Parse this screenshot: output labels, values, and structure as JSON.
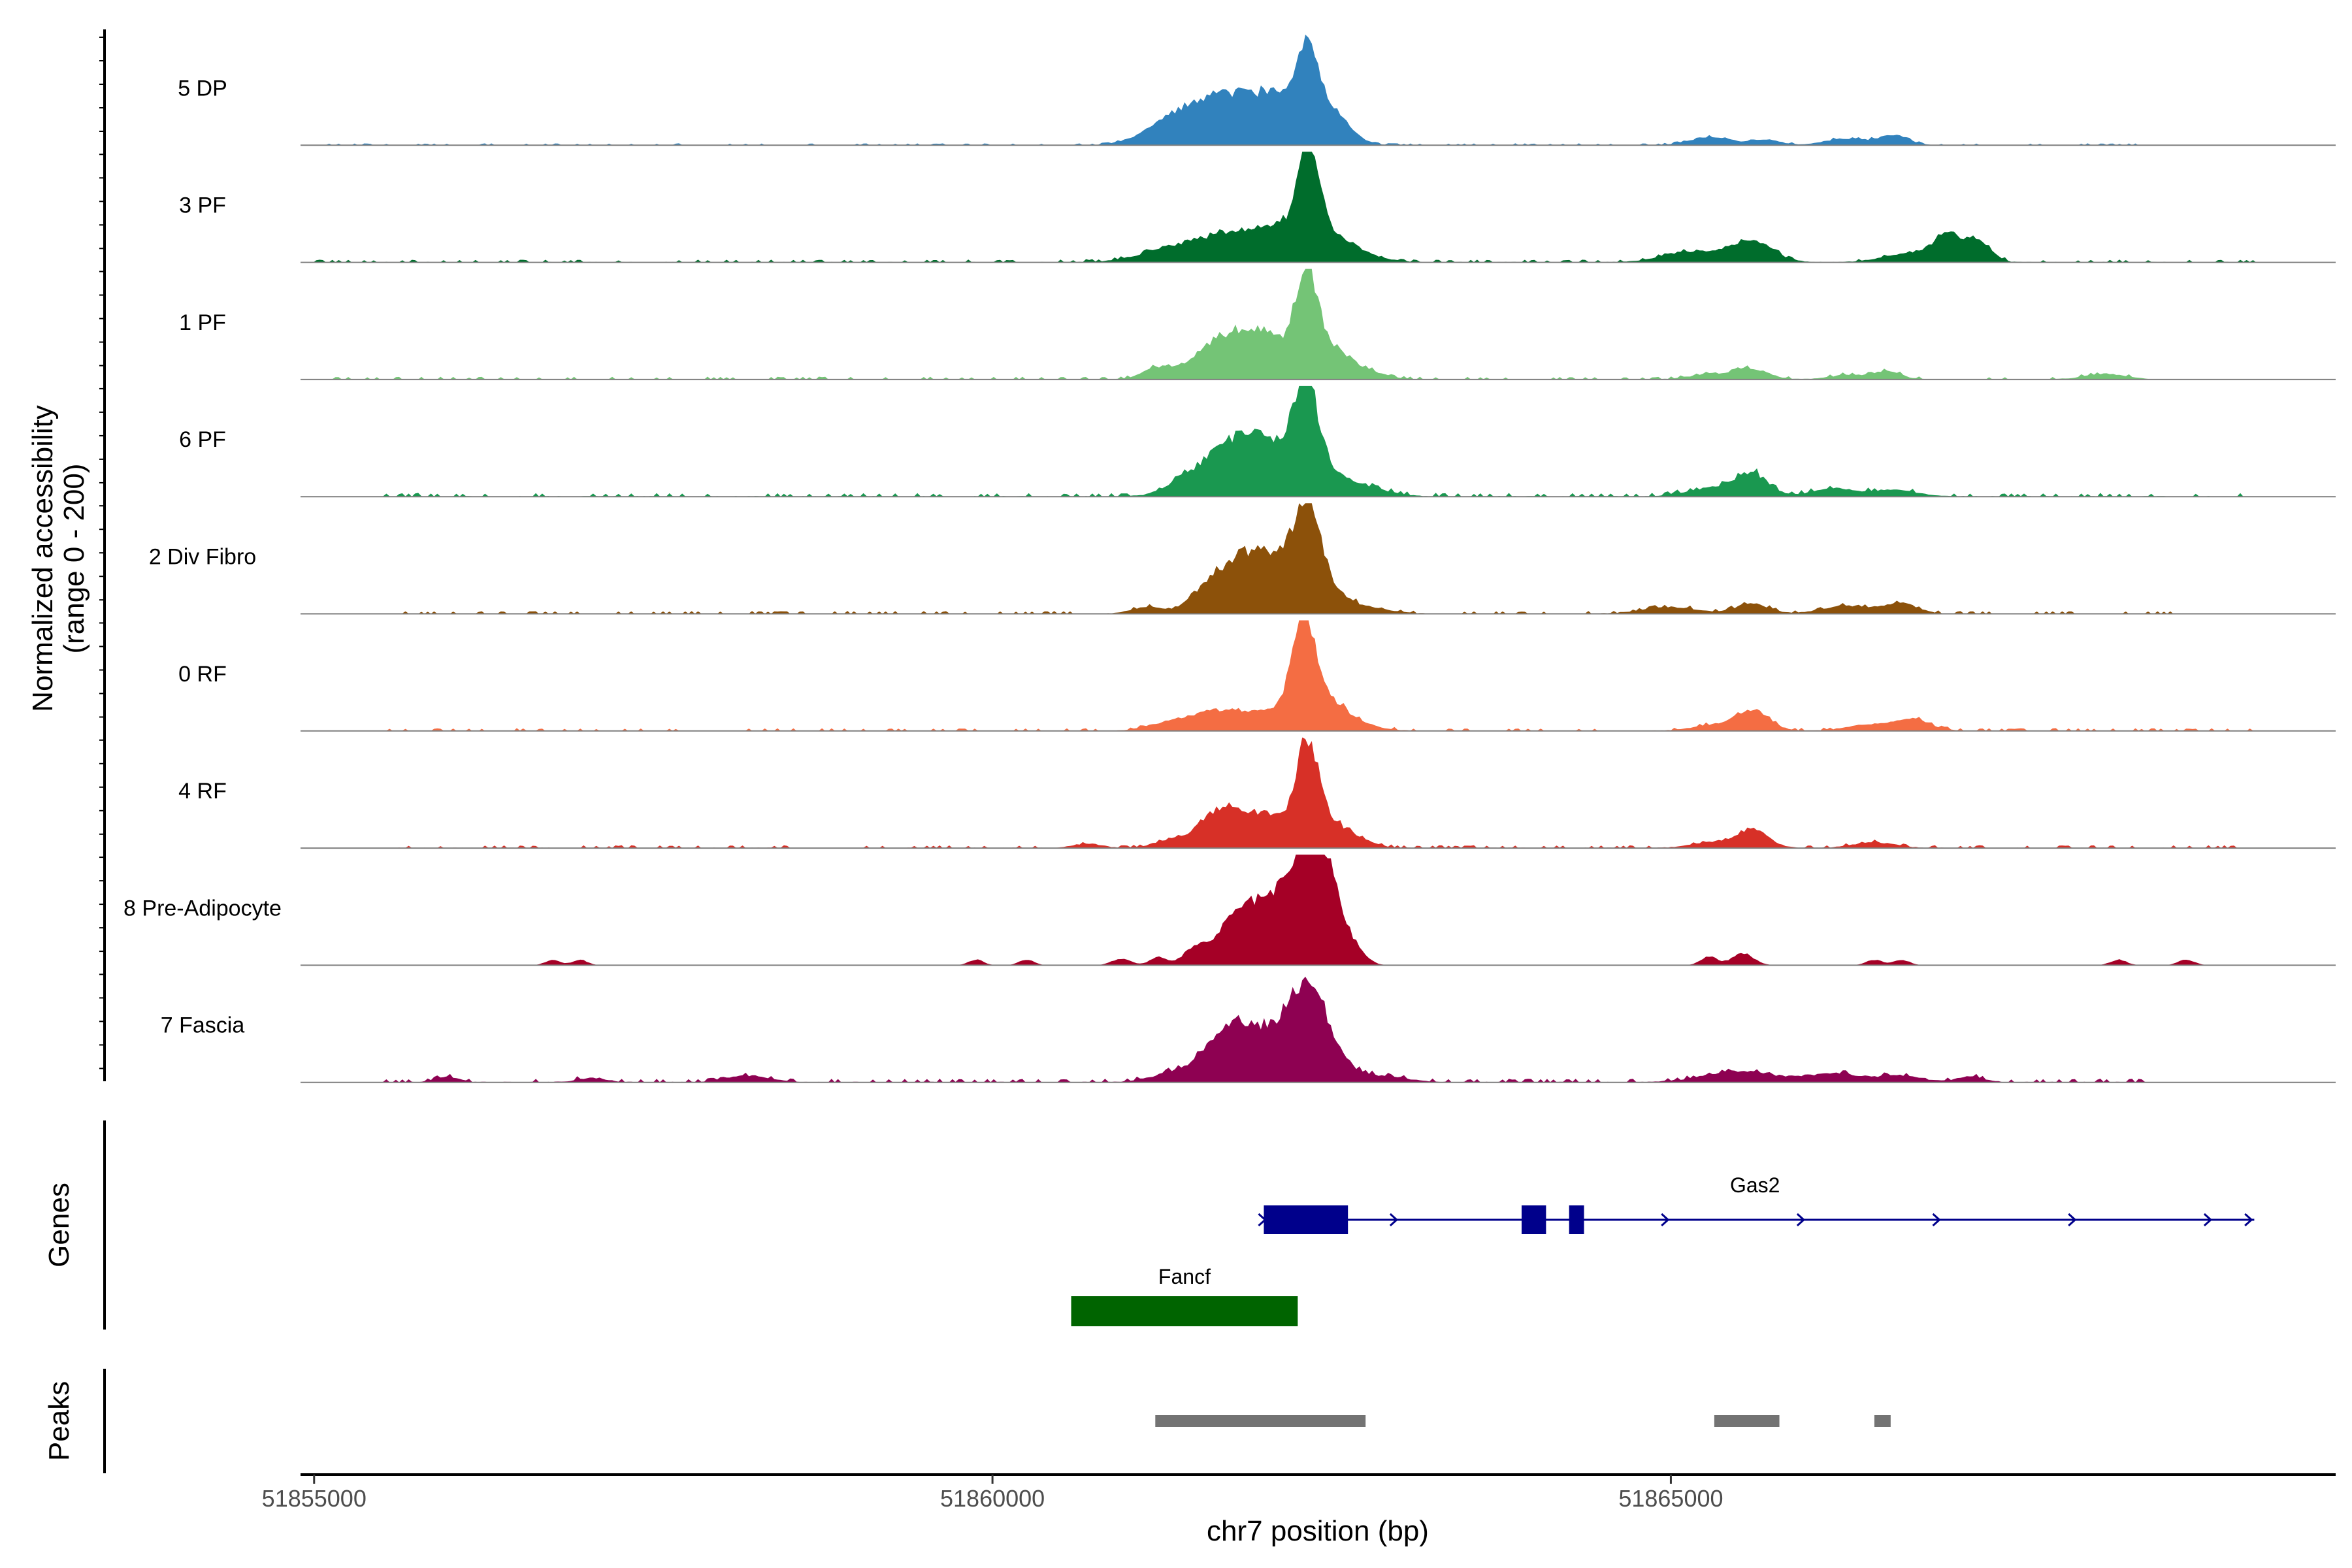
{
  "chart_data": {
    "type": "area",
    "title": "",
    "xlabel": "chr7 position (bp)",
    "ylabel_line1": "Normalized accessibility",
    "ylabel_line2": "(range 0 - 200)",
    "ylim": [
      0,
      200
    ],
    "xlim": [
      51854900,
      51869900
    ],
    "x_ticks": [
      {
        "value": 51855000,
        "label": "51855000"
      },
      {
        "value": 51860000,
        "label": "51860000"
      },
      {
        "value": 51865000,
        "label": "51865000"
      }
    ],
    "tracks": [
      {
        "name": "5 DP",
        "color": "#3182BD",
        "noise": 2,
        "noise_from": 51855000,
        "noise_to": 51868500,
        "peaks": [
          [
            51861150,
            15,
            150
          ],
          [
            51861700,
            92,
            260
          ],
          [
            51862100,
            60,
            160
          ],
          [
            51862320,
            128,
            75
          ],
          [
            51862450,
            70,
            150
          ],
          [
            51861350,
            20,
            120
          ],
          [
            51865300,
            15,
            150
          ],
          [
            51865700,
            10,
            100
          ],
          [
            51866300,
            12,
            160
          ],
          [
            51866650,
            18,
            100
          ]
        ]
      },
      {
        "name": "3 PF",
        "color": "#006D2C",
        "noise": 3,
        "noise_from": 51855000,
        "noise_to": 51869300,
        "peaks": [
          [
            51861300,
            22,
            220
          ],
          [
            51861800,
            55,
            250
          ],
          [
            51862150,
            45,
            130
          ],
          [
            51862330,
            172,
            75
          ],
          [
            51862480,
            50,
            150
          ],
          [
            51862750,
            10,
            150
          ],
          [
            51865150,
            20,
            200
          ],
          [
            51865600,
            38,
            150
          ],
          [
            51866800,
            18,
            200
          ],
          [
            51867050,
            42,
            100
          ],
          [
            51867270,
            38,
            90
          ]
        ]
      },
      {
        "name": "1 PF",
        "color": "#74C476",
        "noise": 3,
        "noise_from": 51855000,
        "noise_to": 51868500,
        "peaks": [
          [
            51861200,
            18,
            100
          ],
          [
            51861750,
            82,
            230
          ],
          [
            51862050,
            45,
            130
          ],
          [
            51862310,
            160,
            85
          ],
          [
            51862470,
            55,
            150
          ],
          [
            51862750,
            12,
            150
          ],
          [
            51865300,
            10,
            150
          ],
          [
            51865600,
            18,
            120
          ],
          [
            51866300,
            8,
            130
          ],
          [
            51866600,
            14,
            100
          ],
          [
            51868200,
            10,
            150
          ]
        ]
      },
      {
        "name": "6 PF",
        "color": "#1A9850",
        "noise": 4,
        "noise_from": 51855500,
        "noise_to": 51869200,
        "peaks": [
          [
            51861400,
            15,
            150
          ],
          [
            51861700,
            65,
            200
          ],
          [
            51862000,
            90,
            200
          ],
          [
            51862310,
            165,
            90
          ],
          [
            51862470,
            40,
            180
          ],
          [
            51862800,
            10,
            160
          ],
          [
            51865300,
            15,
            180
          ],
          [
            51865600,
            40,
            120
          ],
          [
            51866200,
            14,
            160
          ],
          [
            51866650,
            12,
            160
          ]
        ]
      },
      {
        "name": "2 Div Fibro",
        "color": "#8C510A",
        "noise": 3,
        "noise_from": 51855500,
        "noise_to": 51868700,
        "peaks": [
          [
            51861150,
            12,
            120
          ],
          [
            51861550,
            20,
            110
          ],
          [
            51861850,
            100,
            200
          ],
          [
            51862200,
            70,
            180
          ],
          [
            51862330,
            152,
            90
          ],
          [
            51862520,
            25,
            140
          ],
          [
            51862800,
            8,
            160
          ],
          [
            51865000,
            12,
            200
          ],
          [
            51865600,
            18,
            120
          ],
          [
            51866300,
            14,
            180
          ],
          [
            51866700,
            18,
            120
          ]
        ]
      },
      {
        "name": "0 RF",
        "color": "#F46D43",
        "noise": 3,
        "noise_from": 51855500,
        "noise_to": 51869300,
        "peaks": [
          [
            51861300,
            14,
            150
          ],
          [
            51861700,
            38,
            200
          ],
          [
            51862100,
            30,
            150
          ],
          [
            51862290,
            168,
            85
          ],
          [
            51862450,
            55,
            140
          ],
          [
            51862700,
            10,
            150
          ],
          [
            51865300,
            10,
            150
          ],
          [
            51865600,
            38,
            120
          ],
          [
            51866500,
            12,
            180
          ],
          [
            51866800,
            18,
            120
          ]
        ]
      },
      {
        "name": "4 RF",
        "color": "#D73027",
        "noise": 3,
        "noise_from": 51855500,
        "noise_to": 51869200,
        "peaks": [
          [
            51860700,
            8,
            100
          ],
          [
            51861300,
            12,
            120
          ],
          [
            51861650,
            30,
            150
          ],
          [
            51861800,
            50,
            200
          ],
          [
            51862100,
            38,
            150
          ],
          [
            51862320,
            160,
            80
          ],
          [
            51862470,
            45,
            140
          ],
          [
            51862700,
            10,
            120
          ],
          [
            51865300,
            10,
            150
          ],
          [
            51865600,
            32,
            120
          ],
          [
            51866500,
            10,
            150
          ]
        ]
      },
      {
        "name": "8 Pre-Adipocyte",
        "color": "#A50026",
        "noise": 0,
        "noise_from": 51855000,
        "noise_to": 51869500,
        "peaks": [
          [
            51856760,
            10,
            55
          ],
          [
            51856960,
            10,
            55
          ],
          [
            51859880,
            10,
            55
          ],
          [
            51860250,
            10,
            55
          ],
          [
            51860950,
            12,
            70
          ],
          [
            51861220,
            15,
            60
          ],
          [
            51861480,
            25,
            80
          ],
          [
            51861780,
            62,
            150
          ],
          [
            51862080,
            105,
            200
          ],
          [
            51862360,
            160,
            140
          ],
          [
            51862470,
            70,
            130
          ],
          [
            51862700,
            12,
            70
          ],
          [
            51865280,
            16,
            60
          ],
          [
            51865530,
            22,
            80
          ],
          [
            51866500,
            10,
            60
          ],
          [
            51866700,
            10,
            60
          ],
          [
            51868300,
            10,
            60
          ],
          [
            51868800,
            10,
            60
          ]
        ]
      },
      {
        "name": "7 Fascia",
        "color": "#8E0152",
        "noise": 4,
        "noise_from": 51855500,
        "noise_to": 51868500,
        "peaks": [
          [
            51855980,
            10,
            80
          ],
          [
            51857050,
            8,
            100
          ],
          [
            51858200,
            12,
            150
          ],
          [
            51861300,
            14,
            150
          ],
          [
            51861600,
            30,
            150
          ],
          [
            51861790,
            72,
            160
          ],
          [
            51862100,
            70,
            200
          ],
          [
            51862330,
            138,
            140
          ],
          [
            51862550,
            20,
            150
          ],
          [
            51862900,
            10,
            160
          ],
          [
            51865500,
            20,
            250
          ],
          [
            51866200,
            16,
            200
          ],
          [
            51866700,
            12,
            150
          ],
          [
            51867200,
            10,
            100
          ]
        ]
      }
    ],
    "genes": [
      {
        "name": "Gas2",
        "color": "#00008B",
        "strand": "+",
        "start": 51862000,
        "end": 51869300,
        "exons": [
          [
            51862000,
            51862620
          ],
          [
            51863900,
            51864080
          ],
          [
            51864250,
            51864360
          ]
        ],
        "arrows": [
          51862000,
          51862970,
          51863970,
          51864970,
          51865970,
          51866970,
          51867970,
          51868970,
          51869270
        ]
      },
      {
        "name": "Fancf",
        "color": "#006400",
        "start": 51860580,
        "end": 51862250,
        "exons": [
          [
            51860580,
            51862250
          ]
        ],
        "arrows": []
      }
    ],
    "peaks": [
      {
        "start": 51861200,
        "end": 51862750
      },
      {
        "start": 51865320,
        "end": 51865800
      },
      {
        "start": 51866500,
        "end": 51866620
      }
    ],
    "panel_titles": {
      "genes": "Genes",
      "peaks": "Peaks"
    }
  }
}
